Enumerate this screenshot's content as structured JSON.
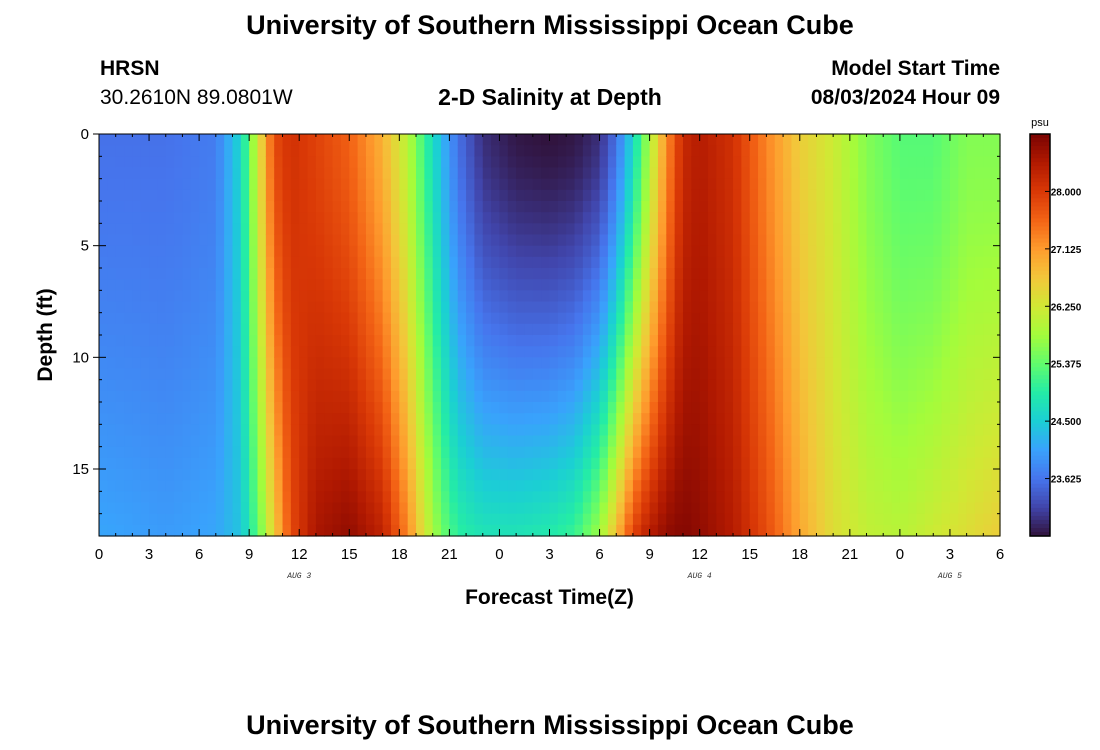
{
  "header": {
    "main_title": "University of Southern Mississippi Ocean Cube",
    "station": "HRSN",
    "coords": "30.2610N  89.0801W",
    "plot_title": "2-D Salinity at Depth",
    "start_label": "Model Start Time",
    "start_value": "08/03/2024 Hour 09"
  },
  "footer": {
    "title": "University of Southern Mississippi Ocean Cube"
  },
  "chart_data": {
    "type": "heatmap",
    "title": "2-D Salinity at Depth",
    "xlabel": "Forecast Time(Z)",
    "ylabel": "Depth (ft)",
    "x_range_hours": [
      0,
      54
    ],
    "x_tick_labels": [
      "0",
      "3",
      "6",
      "9",
      "12",
      "15",
      "18",
      "21",
      "0",
      "3",
      "6",
      "9",
      "12",
      "15",
      "18",
      "21",
      "0",
      "3",
      "6"
    ],
    "day_labels": [
      {
        "text": "AUG 3",
        "hour": 12
      },
      {
        "text": "AUG 4",
        "hour": 36
      },
      {
        "text": "AUG 5",
        "hour": 51
      }
    ],
    "y_range_ft": [
      0,
      18
    ],
    "y_ticks": [
      0,
      5,
      10,
      15
    ],
    "y_inverted": true,
    "colorbar": {
      "unit": "psu",
      "min": 22.75,
      "max": 28.875,
      "ticks": [
        "28.000",
        "27.125",
        "26.250",
        "25.375",
        "24.500",
        "23.625"
      ],
      "colormap": [
        "#30123b",
        "#4145ab",
        "#4675ed",
        "#39a2fc",
        "#1bcfd4",
        "#24eca6",
        "#61fc6c",
        "#a4fc3b",
        "#d1e834",
        "#f3c63a",
        "#fe9b2d",
        "#f36315",
        "#d93806",
        "#b11901",
        "#7a0402"
      ]
    },
    "salinity_model": {
      "description": "salinity estimated per forecast hour at surface (0 ft) and bottom (18 ft)",
      "hours": [
        0,
        4,
        7,
        8.5,
        9.5,
        10.5,
        11.5,
        13,
        15,
        17,
        18.5,
        19.5,
        20.5,
        21.5,
        23,
        25,
        27,
        28.5,
        30,
        31,
        32,
        33,
        34,
        35,
        36,
        38,
        40,
        42,
        44,
        46,
        48,
        50,
        52,
        54
      ],
      "surface": [
        23.6,
        23.6,
        23.7,
        24.6,
        26.2,
        27.8,
        28.1,
        27.9,
        27.6,
        26.9,
        26.0,
        25.1,
        24.3,
        23.6,
        23.0,
        22.8,
        22.75,
        22.8,
        23.0,
        23.6,
        24.6,
        25.9,
        27.2,
        28.2,
        28.4,
        28.1,
        27.3,
        26.6,
        26.2,
        25.6,
        25.3,
        25.3,
        25.6,
        25.6
      ],
      "bottom": [
        24.1,
        24.0,
        24.1,
        24.4,
        25.3,
        26.6,
        27.8,
        28.5,
        28.7,
        28.3,
        27.3,
        26.3,
        25.5,
        25.0,
        24.8,
        24.8,
        24.9,
        25.1,
        25.8,
        26.8,
        27.9,
        28.4,
        28.7,
        28.8,
        28.7,
        28.4,
        27.8,
        27.0,
        26.4,
        26.1,
        26.0,
        26.2,
        26.4,
        26.6
      ]
    }
  }
}
